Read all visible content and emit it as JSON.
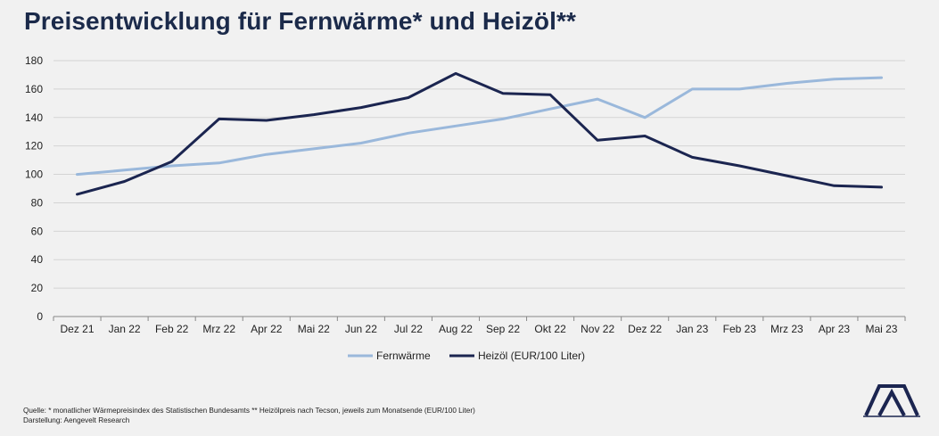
{
  "title": "Preisentwicklung für Fernwärme* und Heizöl**",
  "chart_data": {
    "type": "line",
    "categories": [
      "Dez 21",
      "Jan 22",
      "Feb 22",
      "Mrz 22",
      "Apr 22",
      "Mai 22",
      "Jun 22",
      "Jul 22",
      "Aug 22",
      "Sep 22",
      "Okt 22",
      "Nov 22",
      "Dez 22",
      "Jan 23",
      "Feb 23",
      "Mrz 23",
      "Apr 23",
      "Mai 23"
    ],
    "yticks": [
      0,
      20,
      40,
      60,
      80,
      100,
      120,
      140,
      160,
      180
    ],
    "ylim": [
      0,
      180
    ],
    "grid": true,
    "legend_position": "bottom",
    "series": [
      {
        "name": "Fernwärme",
        "color": "#9ab8db",
        "values": [
          100,
          103,
          106,
          108,
          114,
          118,
          122,
          129,
          134,
          139,
          146,
          153,
          140,
          160,
          160,
          164,
          167,
          168
        ]
      },
      {
        "name": "Heizöl (EUR/100 Liter)",
        "color": "#1b2550",
        "values": [
          86,
          95,
          109,
          139,
          138,
          142,
          147,
          154,
          171,
          157,
          156,
          124,
          127,
          112,
          106,
          99,
          92,
          91
        ]
      }
    ]
  },
  "footer": {
    "source": "Quelle: * monatlicher Wärmepreisindex des Statistischen Bundesamts  ** Heizölpreis nach Tecson, jeweils zum Monatsende (EUR/100 Liter)",
    "credit": "Darstellung: Aengevelt Research"
  },
  "logo": {
    "text": "AENGEVELT"
  }
}
